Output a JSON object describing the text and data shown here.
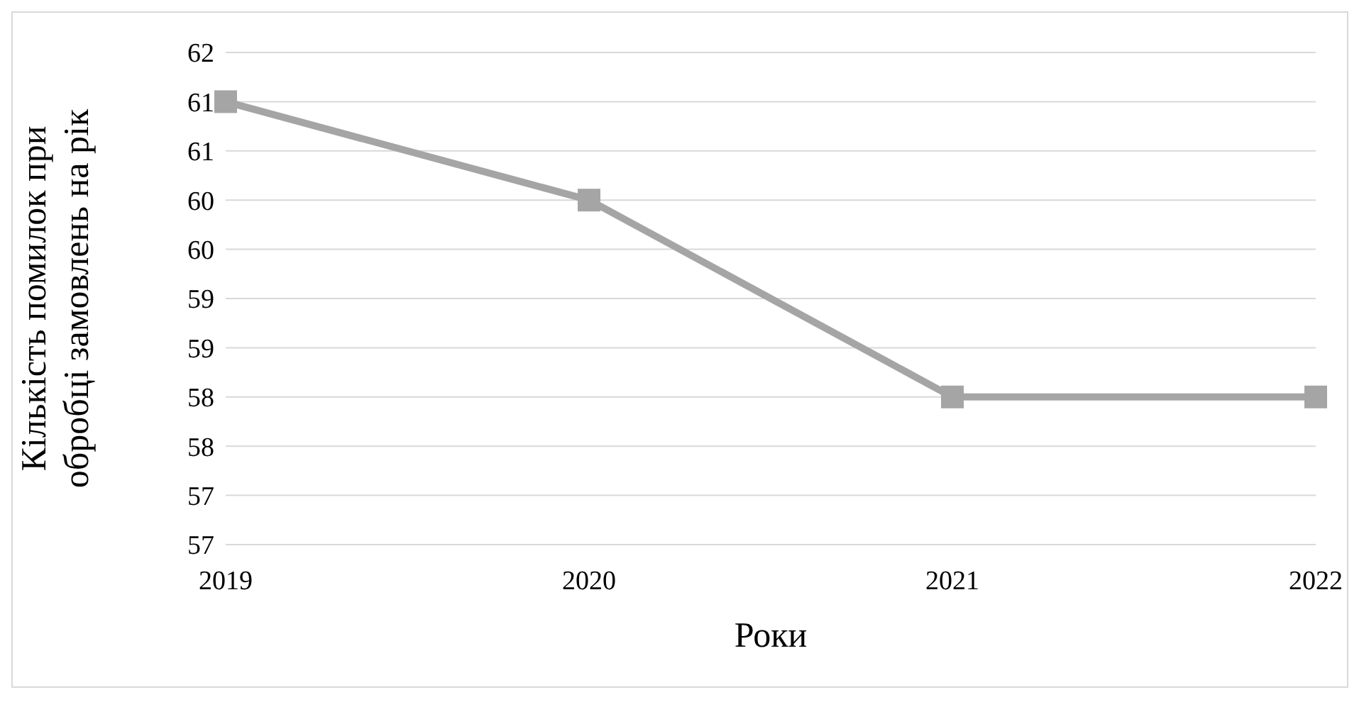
{
  "chart_data": {
    "type": "line",
    "xlabel": "Роки",
    "ylabel": "Кількість помилок при\nобробці замовлень на рік",
    "categories": [
      "2019",
      "2020",
      "2021",
      "2022"
    ],
    "series": [
      {
        "color": "#a5a5a5",
        "values": [
          61,
          60,
          58,
          58
        ]
      }
    ],
    "ylim": [
      56.5,
      61.5
    ],
    "yticks": [
      {
        "value": 56.5,
        "label": "57"
      },
      {
        "value": 57,
        "label": "57"
      },
      {
        "value": 57.5,
        "label": "58"
      },
      {
        "value": 58,
        "label": "58"
      },
      {
        "value": 58.5,
        "label": "59"
      },
      {
        "value": 59,
        "label": "59"
      },
      {
        "value": 59.5,
        "label": "60"
      },
      {
        "value": 60,
        "label": "60"
      },
      {
        "value": 60.5,
        "label": "61"
      },
      {
        "value": 61,
        "label": "61"
      },
      {
        "value": 61.5,
        "label": "62"
      }
    ],
    "grid": "y",
    "marker": "square",
    "legend": false
  }
}
